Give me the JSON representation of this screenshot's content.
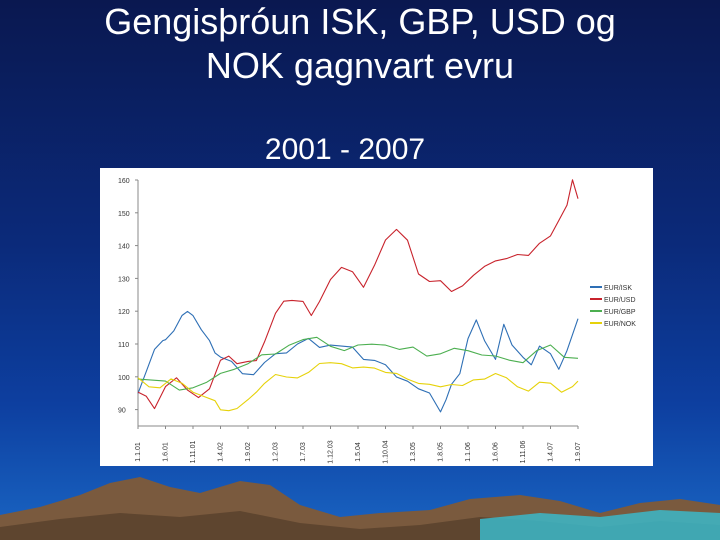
{
  "slide": {
    "title_line1": "Gengisþróun ISK, GBP, USD og",
    "title_line2": "NOK gagnvart evru",
    "subtitle": "2001 - 2007"
  },
  "colors": {
    "background_top": "#0a1850",
    "background_bottom": "#1a66c4",
    "series": [
      "#2e6fb5",
      "#c8232c",
      "#4caf50",
      "#e6d20a"
    ]
  },
  "chart_data": {
    "type": "line",
    "ylim": [
      85,
      160
    ],
    "yticks": [
      90,
      100,
      110,
      120,
      130,
      140,
      150,
      160
    ],
    "xticks": [
      "1.1.01",
      "1.6.01",
      "1.11.01",
      "1.4.02",
      "1.9.02",
      "1.2.03",
      "1.7.03",
      "1.12.03",
      "1.5.04",
      "1.10.04",
      "1.3.05",
      "1.8.05",
      "1.1.06",
      "1.6.06",
      "1.11.06",
      "1.4.07",
      "1.9.07"
    ],
    "grid": false,
    "legend_position": "right",
    "series": [
      {
        "name": "EUR/ISK",
        "color": "#2e6fb5",
        "x": [
          0,
          0.3,
          0.6,
          0.9,
          1.0,
          1.3,
          1.6,
          1.8,
          2.0,
          2.3,
          2.6,
          2.8,
          3.0,
          3.4,
          3.8,
          4.2,
          4.6,
          5.0,
          5.4,
          5.8,
          6.2,
          6.6,
          7.0,
          7.4,
          7.8,
          8.2,
          8.6,
          9.0,
          9.4,
          9.8,
          10.2,
          10.6,
          11.0,
          11.2,
          11.4,
          11.7,
          12.0,
          12.3,
          12.6,
          13.0,
          13.3,
          13.6,
          14.0,
          14.3,
          14.6,
          15.0,
          15.3,
          15.6,
          16.0
        ],
        "values": [
          96,
          102,
          108,
          110,
          112,
          114,
          118,
          121,
          119,
          114,
          110,
          108,
          106,
          104,
          102,
          101,
          104,
          106,
          108,
          110,
          111,
          110,
          110,
          109,
          108,
          106,
          105,
          103,
          101,
          99,
          96,
          94,
          90,
          93,
          97,
          102,
          112,
          117,
          110,
          106,
          116,
          109,
          107,
          104,
          109,
          106,
          103,
          108,
          117
        ]
      },
      {
        "name": "EUR/USD",
        "color": "#c8232c",
        "x": [
          0,
          0.3,
          0.6,
          1.0,
          1.4,
          1.8,
          2.2,
          2.6,
          3.0,
          3.3,
          3.6,
          4.0,
          4.3,
          4.6,
          5.0,
          5.3,
          5.6,
          6.0,
          6.3,
          6.6,
          7.0,
          7.4,
          7.8,
          8.2,
          8.6,
          9.0,
          9.4,
          9.8,
          10.2,
          10.6,
          11.0,
          11.4,
          11.8,
          12.2,
          12.6,
          13.0,
          13.4,
          13.8,
          14.2,
          14.6,
          15.0,
          15.3,
          15.6,
          15.8,
          16.0
        ],
        "values": [
          95,
          93,
          91,
          97,
          99,
          97,
          94,
          96,
          104,
          107,
          104,
          104,
          106,
          111,
          119,
          122,
          124,
          123,
          118,
          124,
          130,
          133,
          131,
          128,
          134,
          141,
          146,
          142,
          131,
          128,
          130,
          126,
          127,
          132,
          134,
          135,
          135,
          138,
          137,
          140,
          144,
          148,
          152,
          159,
          155
        ]
      },
      {
        "name": "EUR/GBP",
        "color": "#4caf50",
        "x": [
          0,
          0.5,
          1.0,
          1.5,
          2.0,
          2.5,
          3.0,
          3.5,
          4.0,
          4.5,
          5.0,
          5.5,
          6.0,
          6.5,
          7.0,
          7.5,
          8.0,
          8.5,
          9.0,
          9.5,
          10.0,
          10.5,
          11.0,
          11.5,
          12.0,
          12.5,
          13.0,
          13.5,
          14.0,
          14.5,
          15.0,
          15.5,
          16.0
        ],
        "values": [
          100,
          99,
          98,
          97,
          97,
          98,
          100,
          103,
          104,
          106,
          108,
          110,
          111,
          111,
          110,
          108,
          109,
          111,
          110,
          108,
          108,
          107,
          107,
          108,
          109,
          107,
          106,
          104,
          105,
          108,
          109,
          107,
          106
        ]
      },
      {
        "name": "EUR/NOK",
        "color": "#e6d20a",
        "x": [
          0,
          0.4,
          0.8,
          1.2,
          1.6,
          2.0,
          2.4,
          2.8,
          3.0,
          3.3,
          3.6,
          4.0,
          4.3,
          4.6,
          5.0,
          5.4,
          5.8,
          6.2,
          6.6,
          7.0,
          7.4,
          7.8,
          8.2,
          8.6,
          9.0,
          9.4,
          9.8,
          10.2,
          10.6,
          11.0,
          11.4,
          11.8,
          12.2,
          12.6,
          13.0,
          13.4,
          13.8,
          14.2,
          14.6,
          15.0,
          15.4,
          15.8,
          16.0
        ],
        "values": [
          99,
          98,
          97,
          99,
          97,
          96,
          94,
          92,
          91,
          90,
          90,
          92,
          96,
          98,
          100,
          101,
          100,
          101,
          103,
          105,
          104,
          102,
          104,
          103,
          101,
          100,
          100,
          98,
          97,
          98,
          98,
          97,
          98,
          100,
          101,
          99,
          98,
          96,
          98,
          97,
          96,
          97,
          98
        ]
      }
    ]
  }
}
